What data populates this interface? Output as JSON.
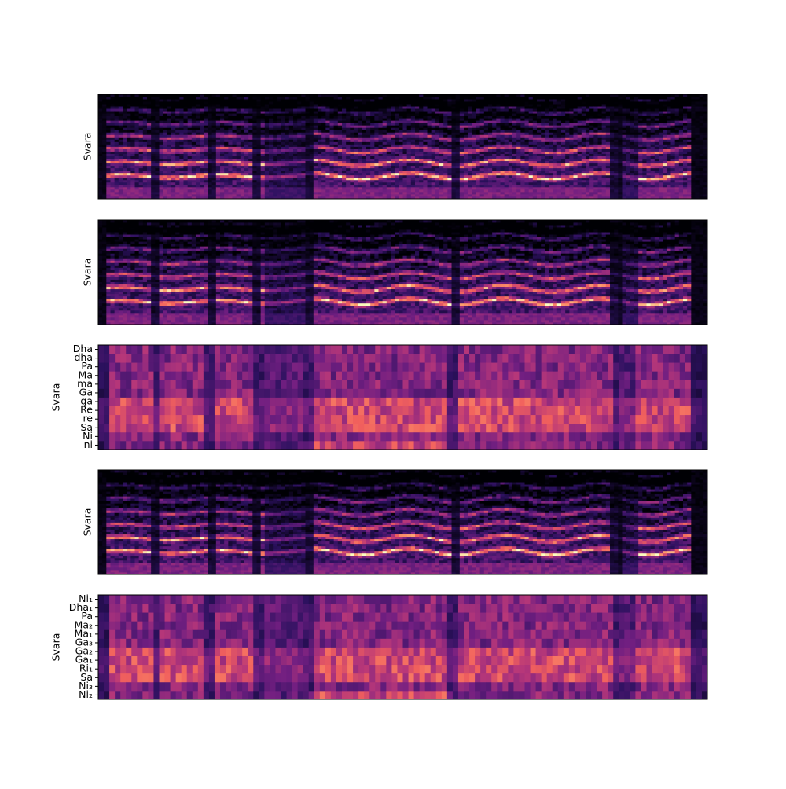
{
  "chart_data": [
    {
      "type": "spectrogram",
      "ylabel": "Svara"
    },
    {
      "type": "spectrogram",
      "ylabel": "Svara"
    },
    {
      "type": "chroma",
      "ylabel": "Svara",
      "categories": [
        "ni",
        "Ni",
        "Sa",
        "re",
        "Re",
        "ga",
        "Ga",
        "ma",
        "Ma",
        "Pa",
        "dha",
        "Dha"
      ]
    },
    {
      "type": "spectrogram",
      "ylabel": "Svara"
    },
    {
      "type": "chroma",
      "ylabel": "Svara",
      "categories": [
        "Ni₂",
        "Ni₃",
        "Sa",
        "Ri₁",
        "Ga₁",
        "Ga₂",
        "Ga₃",
        "Ma₁",
        "Ma₂",
        "Pa",
        "Dha₁",
        "Ni₁"
      ]
    }
  ]
}
